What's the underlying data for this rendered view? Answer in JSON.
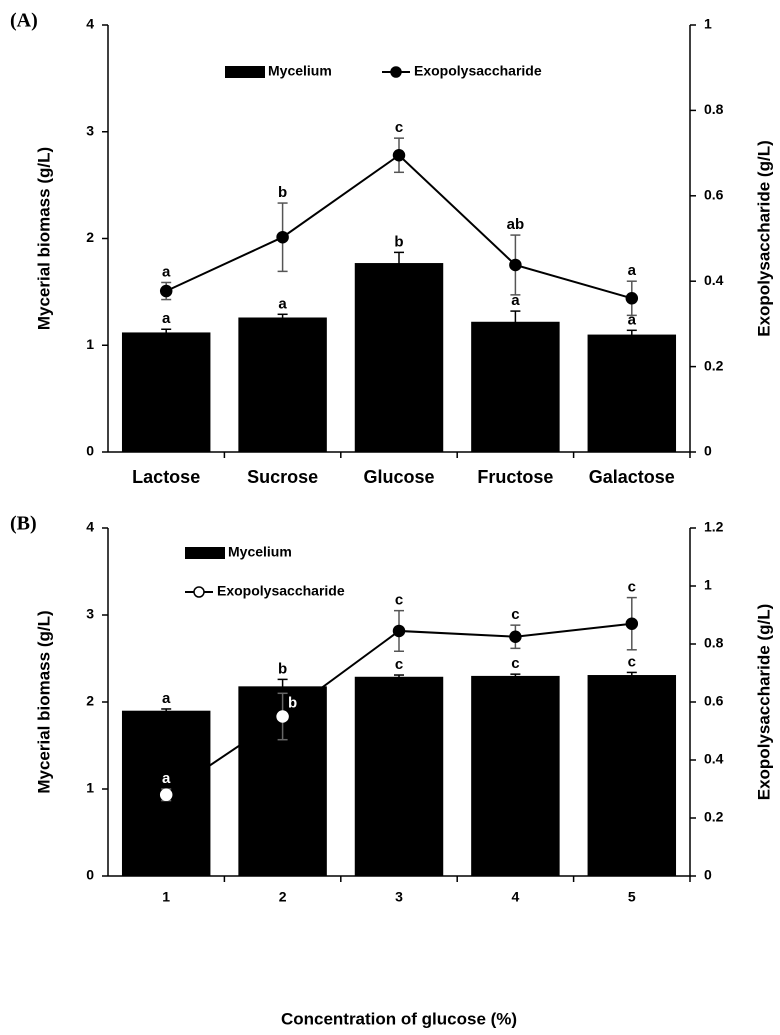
{
  "chart_data": [
    {
      "type": "bar_line",
      "panel_label": "(A)",
      "categories": [
        "Lactose",
        "Sucrose",
        "Glucose",
        "Fructose",
        "Galactose"
      ],
      "series": [
        {
          "name": "Mycelium",
          "color": "#000000",
          "values": [
            1.12,
            1.26,
            1.77,
            1.22,
            1.1
          ],
          "errors": [
            0.03,
            0.03,
            0.1,
            0.1,
            0.04
          ],
          "labels": [
            "a",
            "a",
            "b",
            "a",
            "a"
          ]
        },
        {
          "name": "Exopolysaccharide",
          "axis": "y2",
          "color": "#000000",
          "marker_fill": "#000000",
          "values": [
            0.377,
            0.503,
            0.695,
            0.438,
            0.36
          ],
          "errors": [
            0.02,
            0.08,
            0.04,
            0.07,
            0.04
          ],
          "labels": [
            "a",
            "b",
            "c",
            "ab",
            "a"
          ]
        }
      ],
      "ylabel": "Mycerial biomass (g/L)",
      "y2label": "Exopolysaccharide (g/L)",
      "ylim": [
        0,
        4
      ],
      "yticks": [
        0,
        1,
        2,
        3,
        4
      ],
      "y2lim": [
        0,
        1
      ],
      "y2ticks": [
        0,
        0.2,
        0.4,
        0.6,
        0.8,
        1
      ],
      "legend": "upper center"
    },
    {
      "type": "bar_line",
      "panel_label": "(B)",
      "categories": [
        "1",
        "2",
        "3",
        "4",
        "5"
      ],
      "series": [
        {
          "name": "Mycelium",
          "color": "#000000",
          "values": [
            1.9,
            2.18,
            2.29,
            2.3,
            2.31
          ],
          "errors": [
            0.02,
            0.08,
            0.02,
            0.02,
            0.03
          ],
          "labels": [
            "a",
            "b",
            "c",
            "c",
            "c"
          ]
        },
        {
          "name": "Exopolysaccharide",
          "axis": "y2",
          "color": "#000000",
          "marker_fill": "#ffffff",
          "values": [
            0.28,
            0.55,
            0.845,
            0.825,
            0.87
          ],
          "errors": [
            0.02,
            0.08,
            0.07,
            0.04,
            0.09
          ],
          "labels": [
            "a",
            "b",
            "c",
            "c",
            "c"
          ]
        }
      ],
      "xlabel": "Concentration of glucose (%)",
      "ylabel": "Mycerial biomass (g/L)",
      "y2label": "Exopolysaccharide (g/L)",
      "ylim": [
        0,
        4
      ],
      "yticks": [
        0,
        1,
        2,
        3,
        4
      ],
      "y2lim": [
        0,
        1.2
      ],
      "y2ticks": [
        0,
        0.2,
        0.4,
        0.6,
        0.8,
        1,
        1.2
      ],
      "legend": "upper left"
    }
  ]
}
